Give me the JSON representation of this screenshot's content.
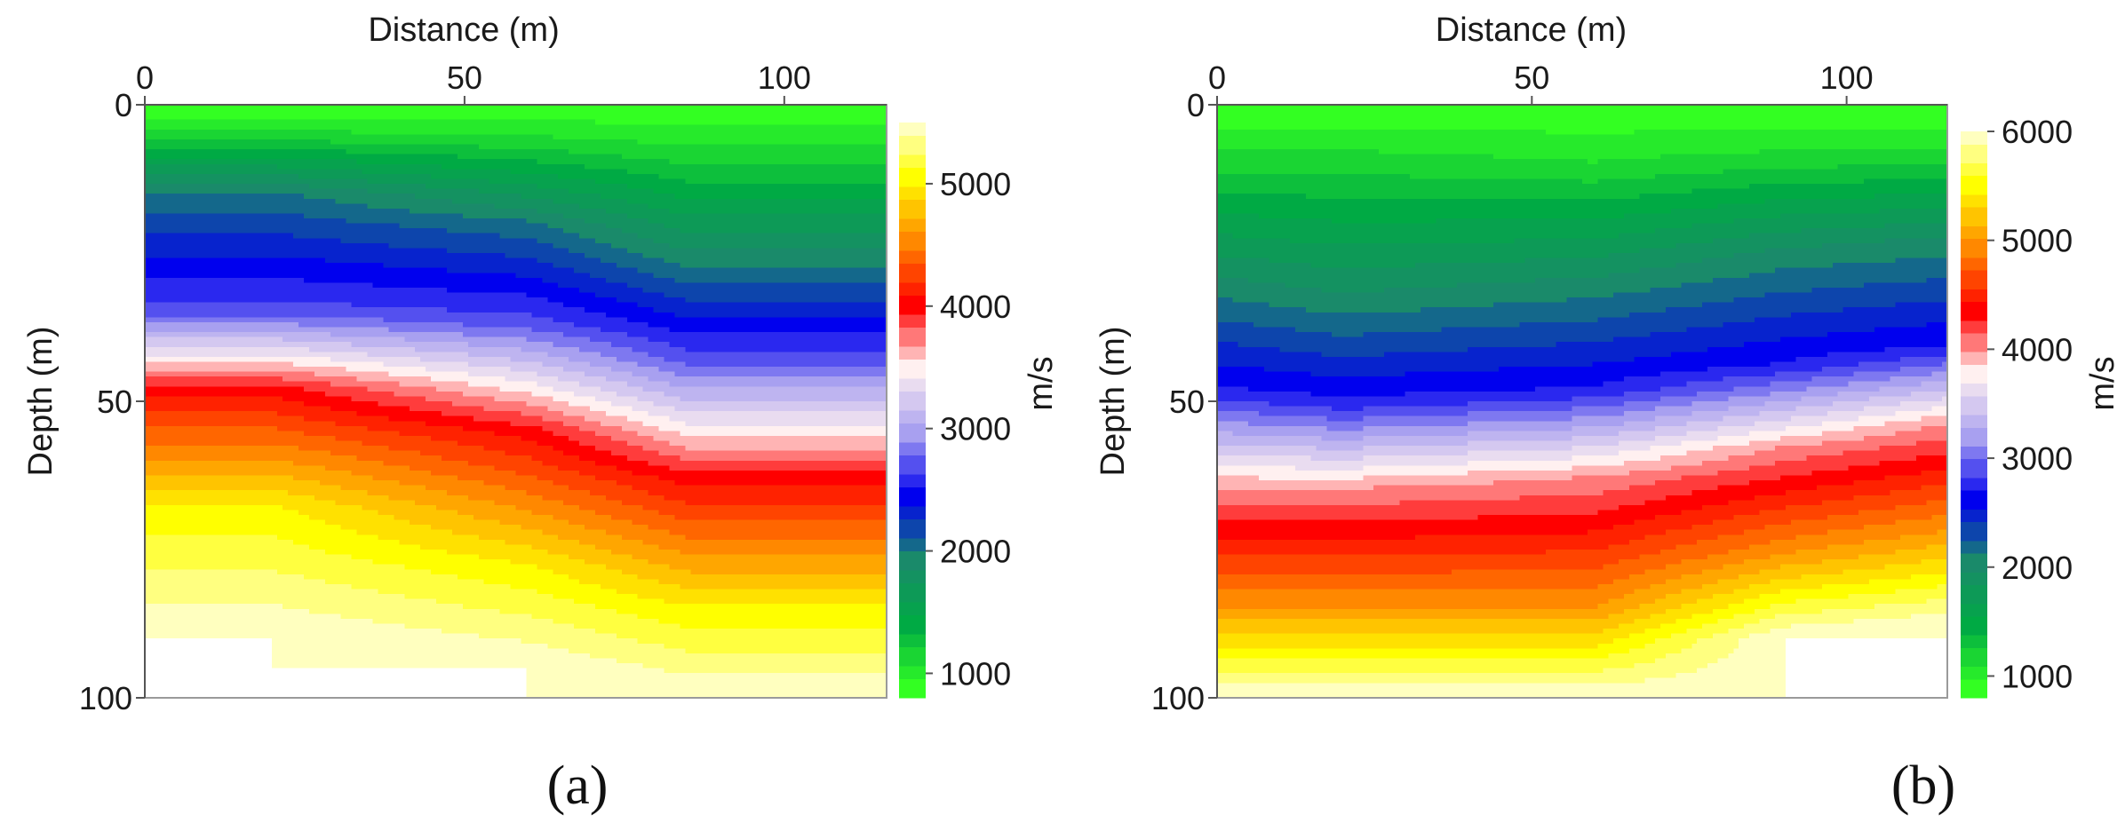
{
  "chart_data": [
    {
      "type": "heatmap",
      "label": "(a)",
      "xlabel": "Distance (m)",
      "ylabel": "Depth (m)",
      "colorbar_label": "m/s",
      "xlim": [
        0,
        116
      ],
      "ylim": [
        0,
        100
      ],
      "x_ticks": [
        0,
        50,
        100
      ],
      "y_ticks": [
        0,
        50,
        100
      ],
      "clim": [
        800,
        5500
      ],
      "colorbar_ticks": [
        1000,
        2000,
        3000,
        4000,
        5000
      ],
      "colormap": [
        "#33ff22",
        "#00aa44",
        "#1a8a6a",
        "#0000ee",
        "#a8a0f0",
        "#fff0f0",
        "#ff0000",
        "#ff8800",
        "#ffff00",
        "#ffffff"
      ],
      "velocity_profiles": [
        {
          "x": 0,
          "depths": [
            0,
            5,
            15,
            35,
            48,
            68,
            90
          ],
          "values": [
            800,
            1100,
            2000,
            2700,
            4000,
            5000,
            5500
          ]
        },
        {
          "x": 20,
          "depths": [
            0,
            5,
            15,
            35,
            48,
            68,
            90
          ],
          "values": [
            800,
            1100,
            2000,
            2700,
            4000,
            5000,
            5500
          ]
        },
        {
          "x": 60,
          "depths": [
            0,
            6,
            20,
            37,
            55,
            78,
            95
          ],
          "values": [
            800,
            1100,
            2000,
            2700,
            4000,
            5000,
            5500
          ]
        },
        {
          "x": 85,
          "depths": [
            0,
            8,
            28,
            43,
            63,
            85,
            100
          ],
          "values": [
            800,
            1100,
            2000,
            2700,
            4000,
            5000,
            5500
          ]
        },
        {
          "x": 116,
          "depths": [
            0,
            8,
            28,
            43,
            63,
            85,
            100
          ],
          "values": [
            800,
            1100,
            2000,
            2700,
            4000,
            5000,
            5500
          ]
        }
      ]
    },
    {
      "type": "heatmap",
      "label": "(b)",
      "xlabel": "Distance (m)",
      "ylabel": "Depth (m)",
      "colorbar_label": "m/s",
      "xlim": [
        0,
        116
      ],
      "ylim": [
        0,
        100
      ],
      "x_ticks": [
        0,
        50,
        100
      ],
      "y_ticks": [
        0,
        50,
        100
      ],
      "clim": [
        800,
        6000
      ],
      "colorbar_ticks": [
        1000,
        2000,
        3000,
        4000,
        5000,
        6000
      ],
      "colormap": [
        "#33ff22",
        "#00aa44",
        "#1a8a6a",
        "#0000ee",
        "#a8a0f0",
        "#fff0f0",
        "#ff0000",
        "#ff8800",
        "#ffff00",
        "#ffffff"
      ],
      "velocity_profiles": [
        {
          "x": 0,
          "depths": [
            0,
            8,
            30,
            48,
            65,
            85,
            100
          ],
          "values": [
            800,
            1100,
            2000,
            2700,
            4000,
            5000,
            6000
          ]
        },
        {
          "x": 20,
          "depths": [
            0,
            8,
            33,
            50,
            65,
            85,
            100
          ],
          "values": [
            800,
            1100,
            2000,
            2700,
            4000,
            5000,
            6000
          ]
        },
        {
          "x": 60,
          "depths": [
            0,
            10,
            30,
            48,
            63,
            85,
            100
          ],
          "values": [
            800,
            1100,
            2000,
            2700,
            4000,
            5000,
            6000
          ]
        },
        {
          "x": 90,
          "depths": [
            0,
            8,
            25,
            44,
            58,
            76,
            90
          ],
          "values": [
            800,
            1100,
            2000,
            2700,
            4000,
            5000,
            6000
          ]
        },
        {
          "x": 116,
          "depths": [
            0,
            8,
            23,
            41,
            54,
            72,
            88
          ],
          "values": [
            800,
            1100,
            2000,
            2700,
            4000,
            5000,
            6000
          ]
        }
      ]
    }
  ]
}
